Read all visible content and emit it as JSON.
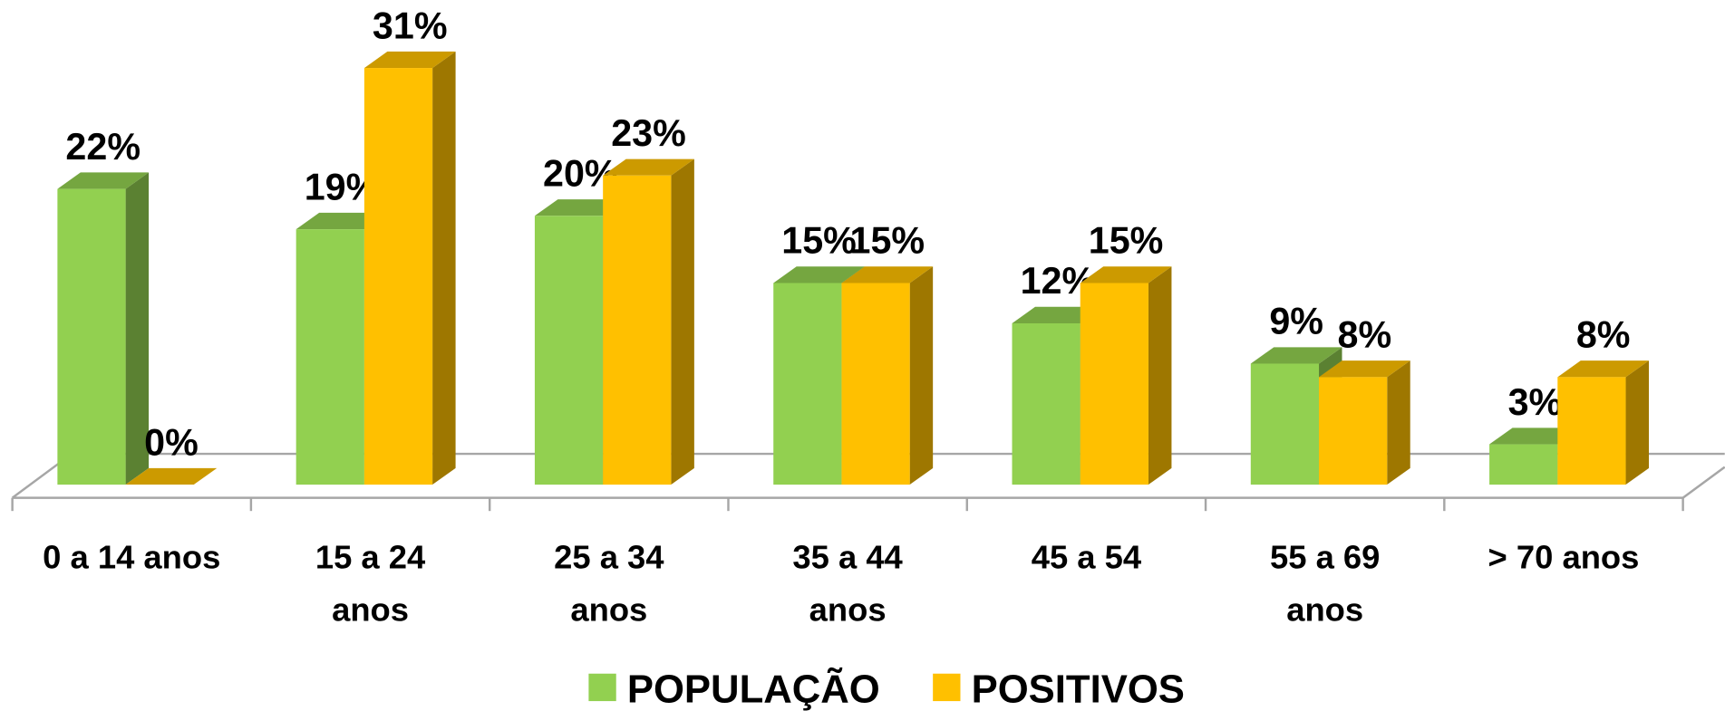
{
  "chart_data": {
    "type": "bar3d",
    "categories": [
      "0 a 14 anos",
      "15 a 24\nanos",
      "25 a 34\nanos",
      "35 a 44\nanos",
      "45 a 54",
      "55 a 69\nanos",
      "> 70 anos"
    ],
    "series": [
      {
        "name": "POPULAÇÃO",
        "color": "#92d050",
        "values": [
          22,
          19,
          20,
          15,
          12,
          9,
          3
        ],
        "value_labels": [
          "22%",
          "19%",
          "20%",
          "15%",
          "12%",
          "9%",
          "3%"
        ]
      },
      {
        "name": "POSITIVOS",
        "color": "#ffc000",
        "values": [
          0,
          31,
          23,
          15,
          15,
          8,
          8
        ],
        "value_labels": [
          "0%",
          "31%",
          "23%",
          "15%",
          "15%",
          "8%",
          "8%"
        ]
      }
    ],
    "legend": "bottom"
  }
}
